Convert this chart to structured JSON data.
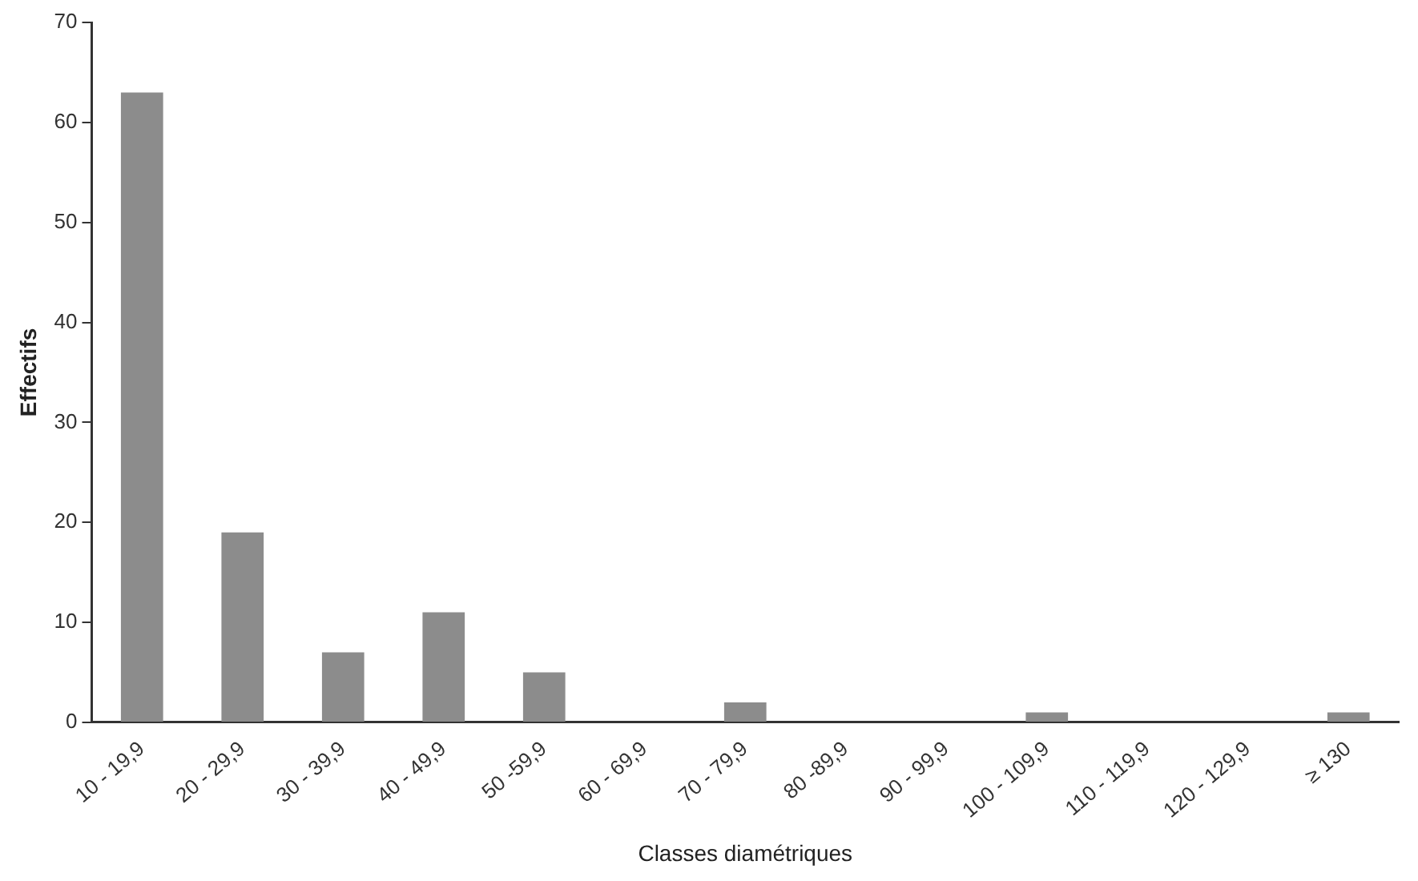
{
  "chart_data": {
    "type": "bar",
    "xlabel": "Classes diamétriques",
    "ylabel": "Effectifs",
    "categories": [
      "10 - 19,9",
      "20 - 29,9",
      "30 - 39,9",
      "40 - 49,9",
      "50 -59,9",
      "60 - 69,9",
      "70 - 79,9",
      "80 -89,9",
      "90 - 99,9",
      "100 - 109,9",
      "110 - 119,9",
      "120 - 129,9",
      "≥ 130"
    ],
    "values": [
      63,
      19,
      7,
      11,
      5,
      0,
      2,
      0,
      0,
      1,
      0,
      0,
      1
    ],
    "color": "#8c8c8c",
    "ylim": [
      0,
      70
    ],
    "yticks": [
      0,
      10,
      20,
      30,
      40,
      50,
      60,
      70
    ],
    "grid": false,
    "legend": false
  }
}
